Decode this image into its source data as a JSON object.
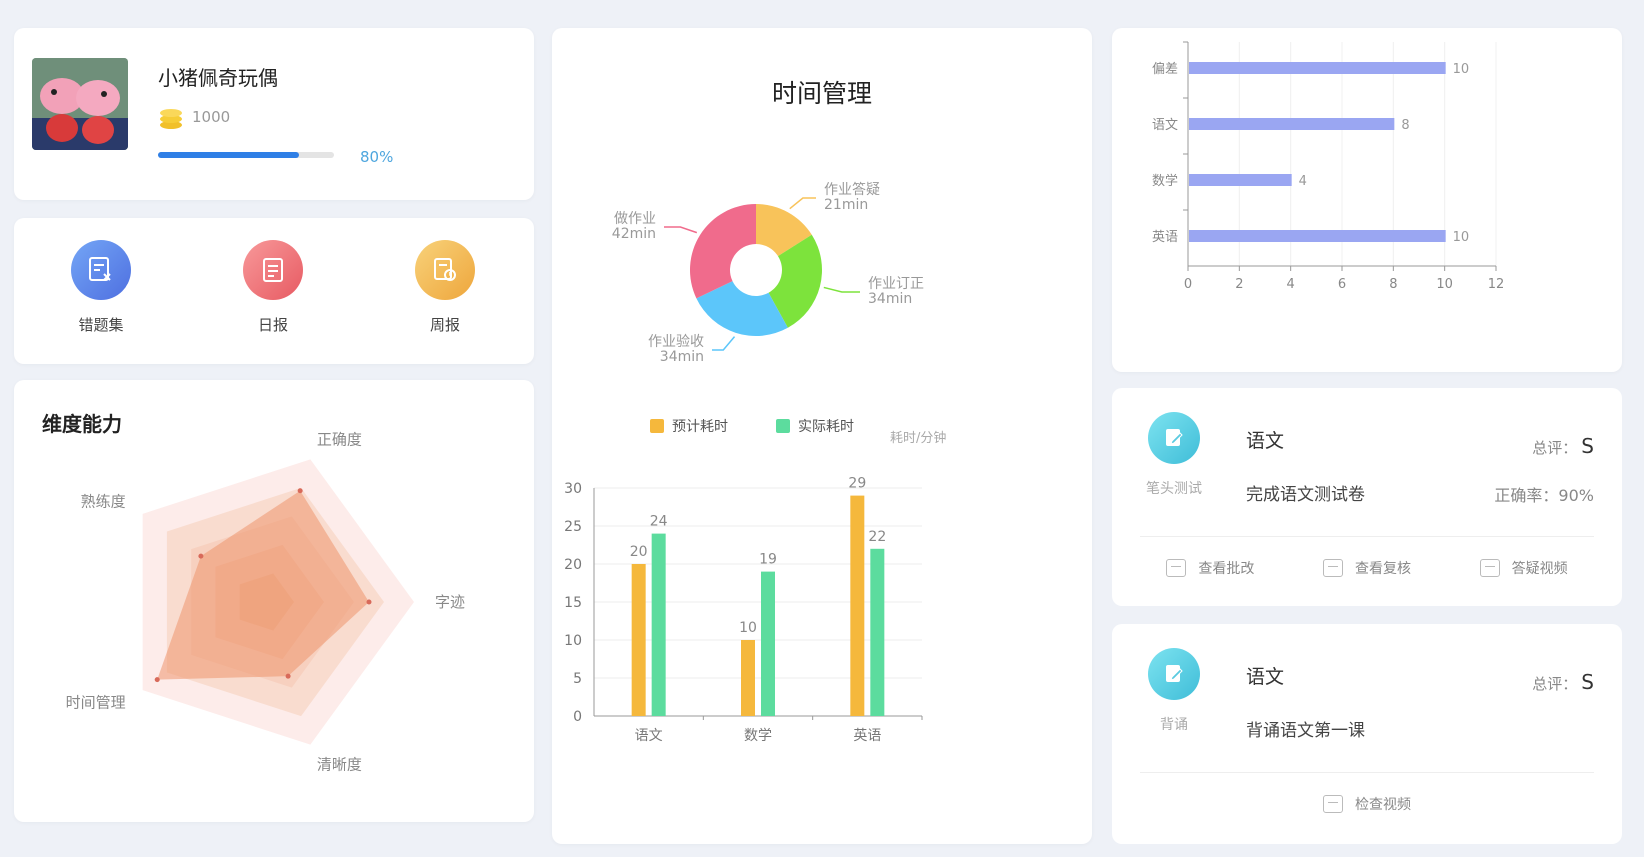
{
  "profile": {
    "name": "小猪佩奇玩偶",
    "coins": "1000",
    "progress_fraction": 0.8,
    "progress_label": "80%"
  },
  "shortcuts": [
    {
      "label": "错题集",
      "color": "#5b86ea",
      "icon": "error-book-icon"
    },
    {
      "label": "日报",
      "color": "#ee6b6f",
      "icon": "daily-report-icon"
    },
    {
      "label": "周报",
      "color": "#f2b84c",
      "icon": "weekly-report-icon"
    }
  ],
  "radar": {
    "title": "维度能力",
    "axes": [
      "正确度",
      "字迹",
      "清晰度",
      "时间管理",
      "熟练度"
    ],
    "max": 100,
    "values": [
      78,
      70,
      52,
      88,
      52
    ]
  },
  "time_management": {
    "title": "时间管理",
    "donut": [
      {
        "name": "作业答疑",
        "value_label": "21min",
        "value": 21,
        "color": "#f8c35a"
      },
      {
        "name": "作业订正",
        "value_label": "34min",
        "value": 34,
        "color": "#7de33c"
      },
      {
        "name": "作业验收",
        "value_label": "34min",
        "value": 34,
        "color": "#5cc6fa"
      },
      {
        "name": "做作业",
        "value_label": "42min",
        "value": 42,
        "color": "#f06b8c"
      }
    ]
  },
  "chart_data": [
    {
      "type": "bar",
      "categories": [
        "语文",
        "数学",
        "英语"
      ],
      "series": [
        {
          "name": "预计耗时",
          "values": [
            20,
            10,
            29
          ],
          "color": "#f5b83c"
        },
        {
          "name": "实际耗时",
          "values": [
            24,
            19,
            22
          ],
          "color": "#5cdc9e"
        }
      ],
      "ylabel": "耗时/分钟",
      "ylim": [
        0,
        30
      ],
      "yticks": [
        0,
        5,
        10,
        15,
        20,
        25,
        30
      ],
      "legend": "top"
    },
    {
      "type": "bar",
      "orientation": "horizontal",
      "categories": [
        "偏差",
        "语文",
        "数学",
        "英语"
      ],
      "values": [
        10,
        8,
        4,
        10
      ],
      "color": "#9aa6f2",
      "xlim": [
        0,
        12
      ],
      "xticks": [
        0,
        2,
        4,
        6,
        8,
        10,
        12
      ]
    }
  ],
  "tasks": [
    {
      "tag": "笔头测试",
      "subject": "语文",
      "description": "完成语文测试卷",
      "score_label": "总评：",
      "score": "S",
      "accuracy": "正确率：90%",
      "actions": [
        "查看批改",
        "查看复核",
        "答疑视频"
      ]
    },
    {
      "tag": "背诵",
      "subject": "语文",
      "description": "背诵语文第一课",
      "score_label": "总评：",
      "score": "S",
      "actions": [
        "检查视频"
      ]
    }
  ]
}
